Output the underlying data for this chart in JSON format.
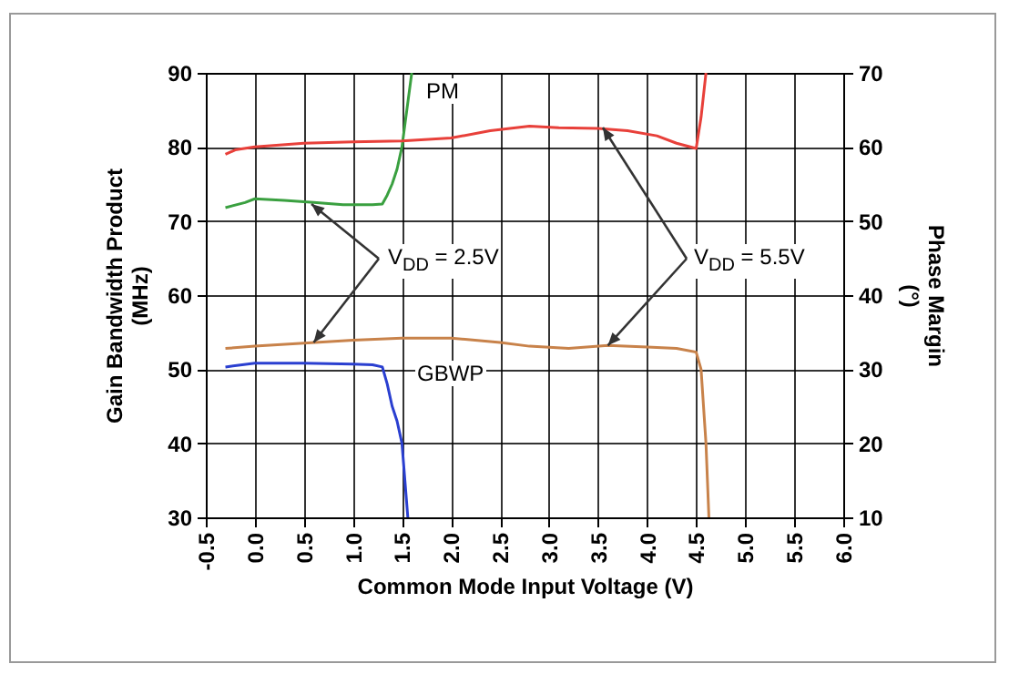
{
  "chart_data": {
    "type": "line",
    "xlabel": "Common Mode Input Voltage (V)",
    "ylabel": "Gain Bandwidth Product (MHz)",
    "y2label": "Phase Margin (°)",
    "xlim": [
      -0.5,
      6.0
    ],
    "xticks": [
      -0.5,
      {
        "value": 0,
        "label": "0.0"
      },
      0.5,
      {
        "value": 1,
        "label": "1.0"
      },
      1.5,
      {
        "value": 2,
        "label": "2.0"
      },
      2.5,
      {
        "value": 3,
        "label": "3.0"
      },
      3.5,
      {
        "value": 4,
        "label": "4.0"
      },
      4.5,
      {
        "value": 5,
        "label": "5.0"
      },
      5.5,
      {
        "value": 6,
        "label": "6.0"
      }
    ],
    "ylim": [
      30,
      90
    ],
    "yticks": [
      30,
      40,
      50,
      60,
      70,
      80,
      90
    ],
    "y2lim": [
      10,
      70
    ],
    "y2ticks": [
      10,
      20,
      30,
      40,
      50,
      60,
      70
    ],
    "grid": true,
    "series": [
      {
        "color": "#2a3fd0",
        "x": [
          -0.3,
          0,
          0.5,
          1.0,
          1.2,
          1.3,
          1.35,
          1.4,
          1.45,
          1.5,
          1.53,
          1.56
        ],
        "values": [
          50.3,
          50.8,
          50.8,
          50.7,
          50.6,
          50.3,
          48,
          45,
          43,
          40,
          35,
          30
        ]
      },
      {
        "color": "#c8824a",
        "x": [
          -0.3,
          0,
          0.5,
          1.0,
          1.5,
          2.0,
          2.5,
          2.8,
          3.2,
          3.6,
          4.0,
          4.3,
          4.5,
          4.55,
          4.6,
          4.63
        ],
        "values": [
          52.8,
          53.1,
          53.5,
          53.9,
          54.2,
          54.2,
          53.6,
          53.1,
          52.8,
          53.2,
          53.0,
          52.8,
          52.3,
          50,
          40,
          30
        ]
      },
      {
        "color": "#3aa040",
        "axis": "y2",
        "x": [
          -0.3,
          -0.1,
          0,
          0.3,
          0.6,
          0.9,
          1.2,
          1.3,
          1.35,
          1.4,
          1.45,
          1.5,
          1.55,
          1.6
        ],
        "values": [
          51.8,
          52.5,
          53,
          52.8,
          52.5,
          52.2,
          52.2,
          52.3,
          53.5,
          55,
          57,
          60,
          65,
          70
        ]
      },
      {
        "color": "#e8403a",
        "axis": "y2",
        "x": [
          -0.3,
          -0.2,
          0,
          0.5,
          1.0,
          1.5,
          2.0,
          2.4,
          2.8,
          3.1,
          3.5,
          3.8,
          4.1,
          4.3,
          4.5,
          4.55,
          4.6
        ],
        "values": [
          59,
          59.6,
          60,
          60.5,
          60.7,
          60.8,
          61.2,
          62.2,
          62.8,
          62.6,
          62.5,
          62.2,
          61.5,
          60.5,
          59.8,
          64,
          70
        ]
      }
    ],
    "annotations": [
      "PM",
      "GBWP",
      {
        "text": "V$_{DD}$ = 2.5V",
        "x": 0.6,
        "y": 53.6
      },
      {
        "text": "V$_{DD}$ = 5.5V",
        "x": 3.6,
        "y": 53.2
      }
    ]
  }
}
